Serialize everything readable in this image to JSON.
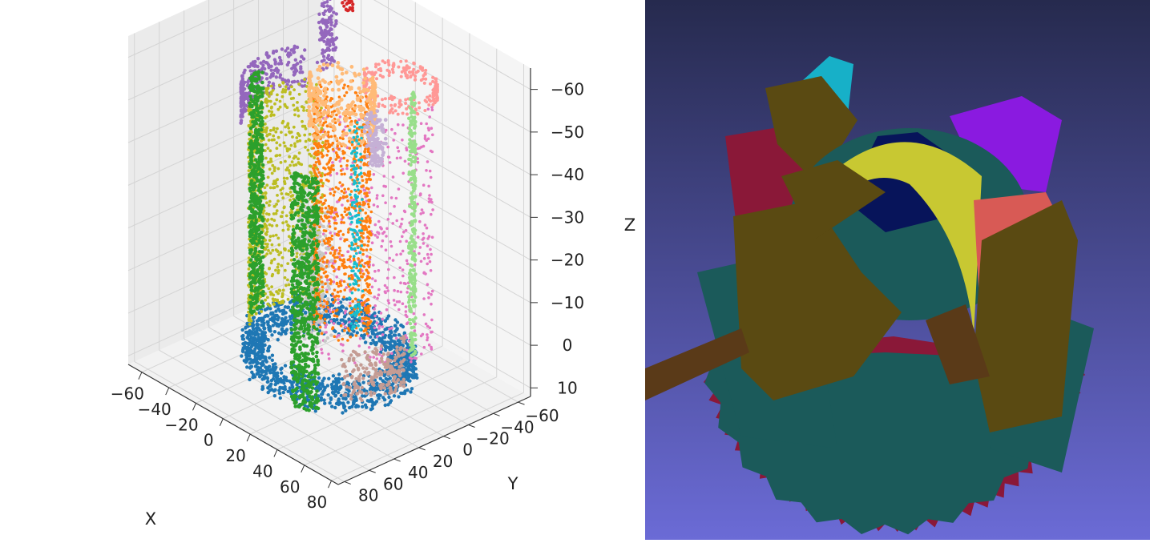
{
  "chart_data": [
    {
      "type": "scatter",
      "projection": "3d",
      "title": "",
      "xlabel": "X",
      "ylabel": "Y",
      "zlabel": "Z",
      "x_ticks": [
        "−60",
        "−40",
        "−20",
        "0",
        "20",
        "40",
        "60",
        "80"
      ],
      "y_ticks": [
        "−60",
        "−40",
        "−20",
        "0",
        "20",
        "40",
        "60",
        "80"
      ],
      "z_ticks": [
        "−60",
        "−50",
        "−40",
        "−30",
        "−20",
        "−10",
        "0",
        "10"
      ],
      "xlim": [
        -70,
        85
      ],
      "ylim": [
        -70,
        85
      ],
      "zlim": [
        -65,
        12
      ],
      "z_inverted": true,
      "grid": true,
      "legend": "none",
      "segments": [
        {
          "color": "#1f77b4"
        },
        {
          "color": "#2ca02c"
        },
        {
          "color": "#bcbd22"
        },
        {
          "color": "#ff7f0e"
        },
        {
          "color": "#ffbb78"
        },
        {
          "color": "#ff9896"
        },
        {
          "color": "#e377c2"
        },
        {
          "color": "#98df8a"
        },
        {
          "color": "#9467bd"
        },
        {
          "color": "#d62728"
        },
        {
          "color": "#c7c7c7"
        },
        {
          "color": "#17becf"
        },
        {
          "color": "#c5b0d5"
        },
        {
          "color": "#c49c94"
        }
      ]
    },
    {
      "type": "render",
      "background": [
        "#262a4e",
        "#6b6bd6"
      ],
      "colors": [
        "#5a4a12",
        "#17b0c8",
        "#1b5a5a",
        "#8a1838",
        "#07145a",
        "#c8c832",
        "#8a1ae0",
        "#d85a55",
        "#1e4e82",
        "#5a3a18"
      ]
    }
  ]
}
